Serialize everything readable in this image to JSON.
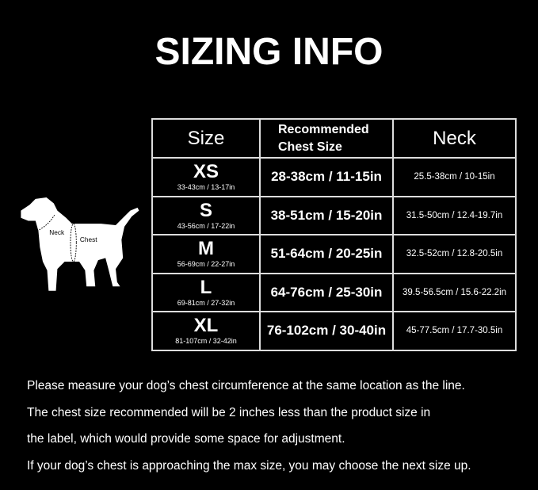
{
  "title": "SIZING INFO",
  "diagram": {
    "neck_label": "Neck",
    "chest_label": "Chest"
  },
  "table": {
    "headers": [
      "Size",
      "Recommended Chest Size",
      "Neck"
    ],
    "header_lines": [
      "Recommended",
      "Chest Size"
    ],
    "rows": [
      {
        "size": "XS",
        "size_range": "33-43cm / 13-17in",
        "chest": "28-38cm / 11-15in",
        "neck": "25.5-38cm / 10-15in"
      },
      {
        "size": "S",
        "size_range": "43-56cm / 17-22in",
        "chest": "38-51cm / 15-20in",
        "neck": "31.5-50cm / 12.4-19.7in"
      },
      {
        "size": "M",
        "size_range": "56-69cm / 22-27in",
        "chest": "51-64cm / 20-25in",
        "neck": "32.5-52cm / 12.8-20.5in"
      },
      {
        "size": "L",
        "size_range": "69-81cm / 27-32in",
        "chest": "64-76cm / 25-30in",
        "neck": "39.5-56.5cm / 15.6-22.2in"
      },
      {
        "size": "XL",
        "size_range": "81-107cm / 32-42in",
        "chest": "76-102cm / 30-40in",
        "neck": "45-77.5cm / 17.7-30.5in"
      }
    ]
  },
  "notes": [
    "Please measure your dog’s chest circumference at the same location as the line.",
    "The chest size recommended will be 2 inches less than the product size in",
    "the label, which would provide some space for adjustment.",
    "If your dog’s chest is approaching the max size, you may choose the next size up."
  ]
}
